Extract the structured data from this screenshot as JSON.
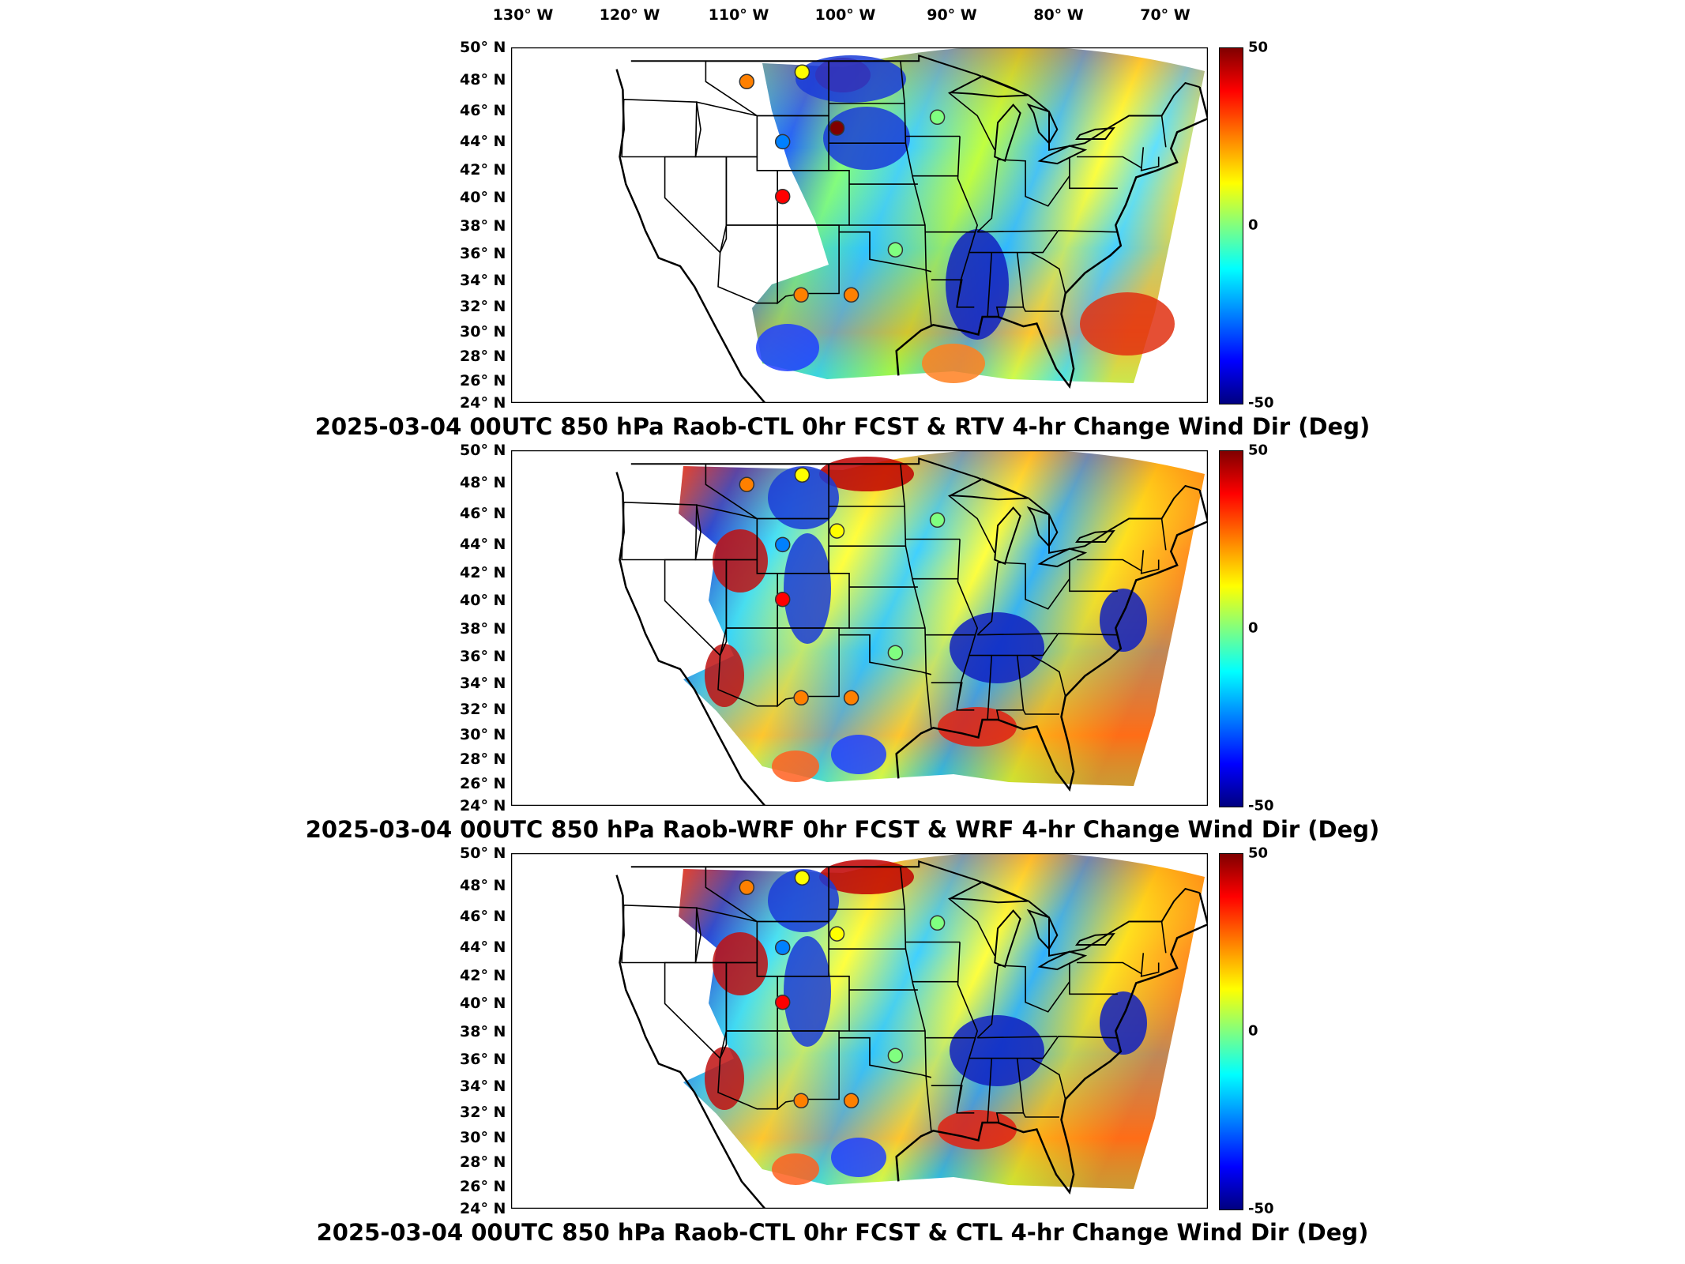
{
  "lon_labels": [
    "130° W",
    "120° W",
    "110° W",
    "100° W",
    "90° W",
    "80° W",
    "70° W"
  ],
  "lat_labels": [
    "50° N",
    "48° N",
    "46° N",
    "44° N",
    "42° N",
    "40° N",
    "38° N",
    "36° N",
    "34° N",
    "32° N",
    "30° N",
    "28° N",
    "26° N",
    "24° N"
  ],
  "colorbar": {
    "max_label": "50",
    "mid_label": "0",
    "min_label": "-50",
    "colors": [
      "#800000",
      "#ff0000",
      "#ff8000",
      "#ffff00",
      "#80ff80",
      "#00ffff",
      "#0080ff",
      "#0000ff",
      "#000080"
    ]
  },
  "panels": [
    {
      "title": "2025-03-04 00UTC 850 hPa Raob-CTL 0hr FCST & RTV 4-hr Change Wind Dir (Deg)",
      "stations": [
        {
          "lon": -112.0,
          "lat": 47.5,
          "value": 30
        },
        {
          "lon": -106.6,
          "lat": 48.2,
          "value": 8
        },
        {
          "lon": -103.2,
          "lat": 44.1,
          "value": 45
        },
        {
          "lon": -108.5,
          "lat": 43.1,
          "value": -20
        },
        {
          "lon": -108.5,
          "lat": 39.1,
          "value": 40
        },
        {
          "lon": -93.4,
          "lat": 44.9,
          "value": 5
        },
        {
          "lon": -97.5,
          "lat": 35.2,
          "value": 0
        },
        {
          "lon": -106.7,
          "lat": 31.9,
          "value": 30
        },
        {
          "lon": -101.8,
          "lat": 31.9,
          "value": 28
        }
      ]
    },
    {
      "title": "2025-03-04 00UTC 850 hPa Raob-WRF 0hr FCST & WRF 4-hr Change Wind Dir (Deg)",
      "stations": [
        {
          "lon": -112.0,
          "lat": 47.5,
          "value": 30
        },
        {
          "lon": -106.6,
          "lat": 48.2,
          "value": 8
        },
        {
          "lon": -103.2,
          "lat": 44.1,
          "value": 15
        },
        {
          "lon": -108.5,
          "lat": 43.1,
          "value": -20
        },
        {
          "lon": -108.5,
          "lat": 39.1,
          "value": 40
        },
        {
          "lon": -93.4,
          "lat": 44.9,
          "value": 5
        },
        {
          "lon": -97.5,
          "lat": 35.2,
          "value": 0
        },
        {
          "lon": -106.7,
          "lat": 31.9,
          "value": 30
        },
        {
          "lon": -101.8,
          "lat": 31.9,
          "value": 28
        }
      ]
    },
    {
      "title": "2025-03-04 00UTC 850 hPa Raob-CTL 0hr FCST & CTL 4-hr Change Wind Dir (Deg)",
      "stations": [
        {
          "lon": -112.0,
          "lat": 47.5,
          "value": 30
        },
        {
          "lon": -106.6,
          "lat": 48.2,
          "value": 8
        },
        {
          "lon": -103.2,
          "lat": 44.1,
          "value": 15
        },
        {
          "lon": -108.5,
          "lat": 43.1,
          "value": -20
        },
        {
          "lon": -108.5,
          "lat": 39.1,
          "value": 40
        },
        {
          "lon": -93.4,
          "lat": 44.9,
          "value": 5
        },
        {
          "lon": -97.5,
          "lat": 35.2,
          "value": 0
        },
        {
          "lon": -106.7,
          "lat": 31.9,
          "value": 30
        },
        {
          "lon": -101.8,
          "lat": 31.9,
          "value": 28
        }
      ]
    }
  ]
}
